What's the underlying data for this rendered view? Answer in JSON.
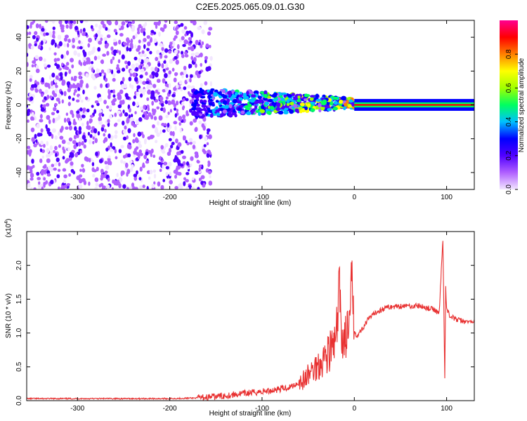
{
  "title": "C2E5.2025.065.09.01.G30",
  "chart_data": [
    {
      "type": "heatmap",
      "xlabel": "Height of straight line (km)",
      "ylabel": "Frequency (Hz)",
      "xlim": [
        -355,
        130
      ],
      "ylim": [
        -50,
        50
      ],
      "xticks": [
        -300,
        -200,
        -100,
        0,
        100
      ],
      "yticks": [
        -40,
        -20,
        0,
        20,
        40
      ],
      "colorbar": {
        "label": "Normalized spectral amplitude",
        "range": [
          0.0,
          1.0
        ],
        "ticks": [
          0.0,
          0.2,
          0.4,
          0.6,
          0.8
        ],
        "colormap": [
          "#f2e6ff",
          "#b060ff",
          "#5000ff",
          "#0000ff",
          "#00c0ff",
          "#00ff60",
          "#a0ff00",
          "#ffff00",
          "#ff8000",
          "#ff0000",
          "#ff0090"
        ]
      },
      "regions": [
        {
          "x_range": [
            -355,
            -155
          ],
          "level": 0.15
        },
        {
          "x_range": [
            -175,
            0
          ],
          "level": 0.45
        },
        {
          "x_range": [
            0,
            130
          ],
          "level": 0.9
        }
      ]
    },
    {
      "type": "line",
      "xlabel": "Height of straight line (km)",
      "ylabel": "SNR (10 * v/v)",
      "yscale_label": "(x10",
      "yscale_exp": "4",
      "xlim": [
        -355,
        130
      ],
      "ylim": [
        0,
        2.5
      ],
      "xticks": [
        -300,
        -200,
        -100,
        0,
        100
      ],
      "yticks": [
        0.0,
        0.5,
        1.0,
        1.5,
        2.0
      ],
      "series_color": "#e83030",
      "x": [
        -355,
        -300,
        -250,
        -200,
        -170,
        -150,
        -130,
        -110,
        -90,
        -70,
        -55,
        -45,
        -38,
        -32,
        -26,
        -20,
        -16,
        -13,
        -10,
        -6,
        -2,
        0,
        3,
        8,
        15,
        25,
        35,
        50,
        70,
        85,
        92,
        96,
        98,
        99,
        100,
        104,
        110,
        120,
        130
      ],
      "y": [
        0.03,
        0.03,
        0.03,
        0.03,
        0.04,
        0.06,
        0.09,
        0.12,
        0.15,
        0.2,
        0.3,
        0.45,
        0.55,
        0.65,
        0.75,
        0.85,
        1.6,
        0.9,
        0.95,
        1.0,
        1.75,
        1.05,
        0.95,
        1.05,
        1.2,
        1.32,
        1.38,
        1.4,
        1.4,
        1.35,
        1.3,
        2.4,
        0.3,
        1.7,
        1.35,
        1.25,
        1.2,
        1.17,
        1.16
      ]
    }
  ]
}
